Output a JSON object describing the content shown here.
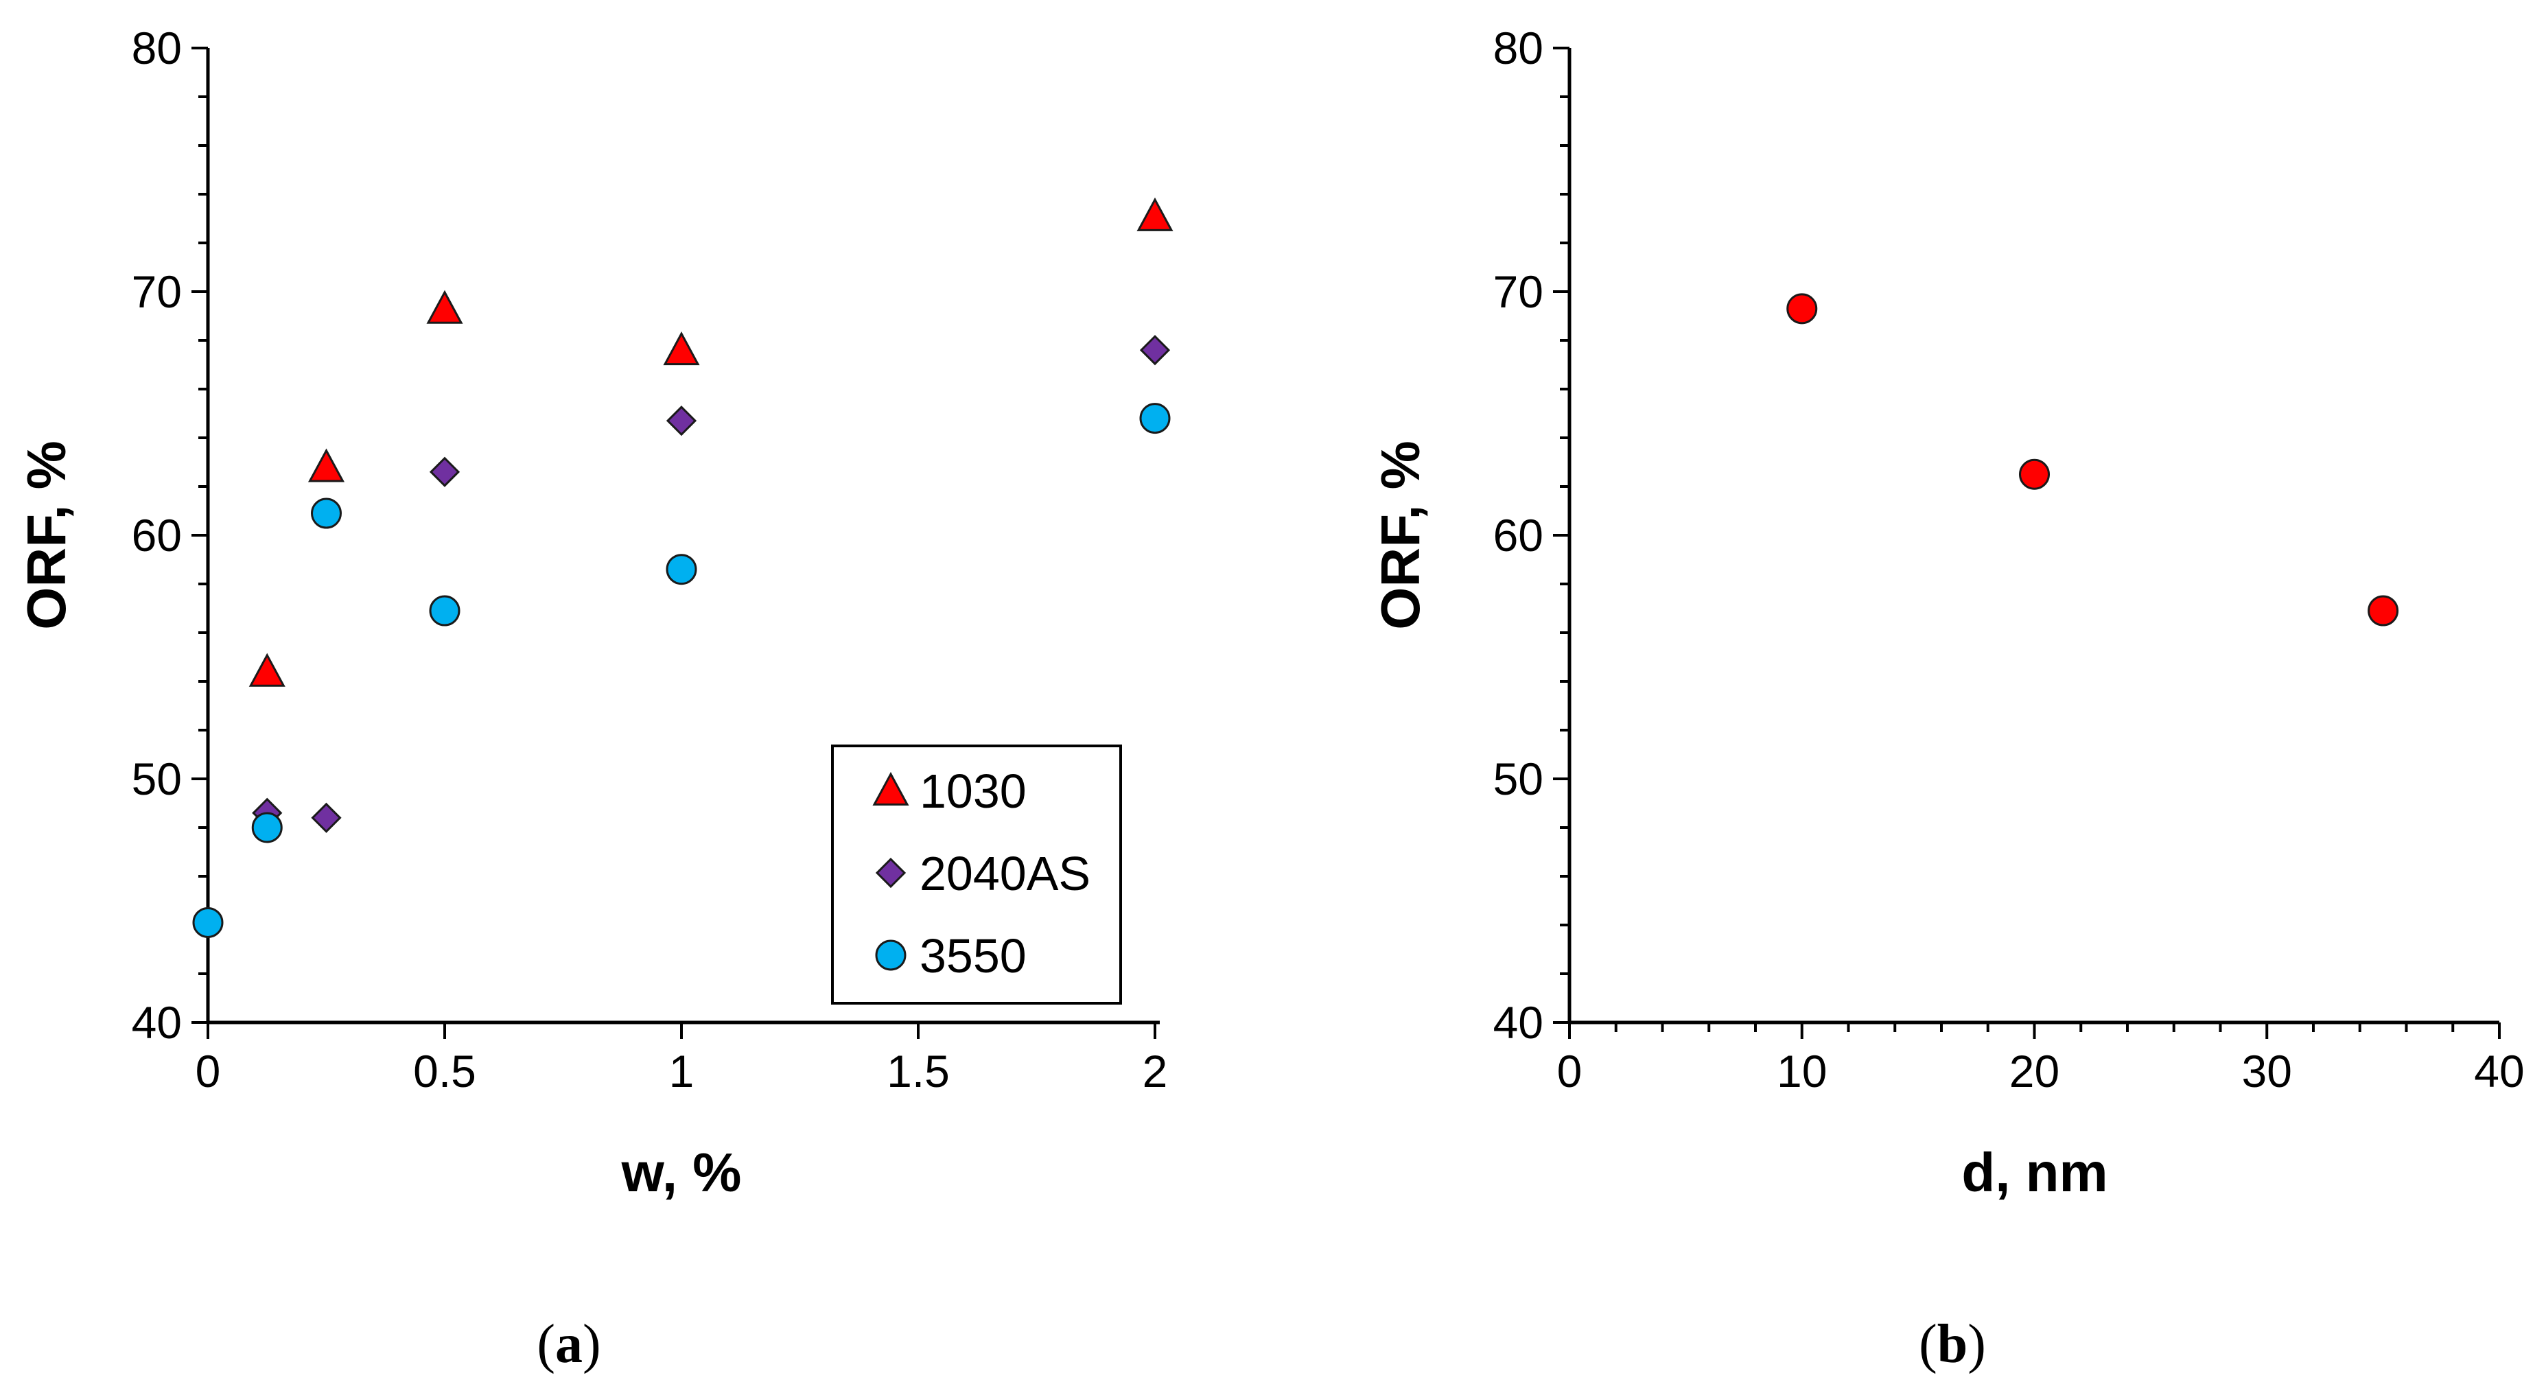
{
  "chart_data": [
    {
      "type": "scatter",
      "panel": "a",
      "xlabel": "w, %",
      "ylabel": "ORF, %",
      "ylim": [
        40,
        80
      ],
      "yticks": [
        40,
        50,
        60,
        70,
        80
      ],
      "categories": [
        "0",
        "0.5",
        "1",
        "1.5",
        "2"
      ],
      "legend_position": "bottom-right",
      "series": [
        {
          "name": "1030",
          "marker": "triangle",
          "color": "#ff0000",
          "x": [
            0.125,
            0.25,
            0.5,
            1,
            2
          ],
          "y": [
            54.4,
            62.8,
            69.3,
            67.6,
            73.1
          ]
        },
        {
          "name": "2040AS",
          "marker": "diamond",
          "color": "#7030a0",
          "x": [
            0.125,
            0.25,
            0.5,
            1,
            2
          ],
          "y": [
            48.6,
            48.4,
            62.6,
            64.7,
            67.6
          ]
        },
        {
          "name": "3550",
          "marker": "circle",
          "color": "#00b0f0",
          "x": [
            0,
            0.125,
            0.25,
            0.5,
            1,
            2
          ],
          "y": [
            44.1,
            48.0,
            60.9,
            56.9,
            58.6,
            64.8
          ]
        }
      ]
    },
    {
      "type": "scatter",
      "panel": "b",
      "xlabel": "d, nm",
      "ylabel": "ORF, %",
      "xlim": [
        0,
        40
      ],
      "ylim": [
        40,
        80
      ],
      "xticks": [
        0,
        10,
        20,
        30,
        40
      ],
      "yticks": [
        40,
        50,
        60,
        70,
        80
      ],
      "series": [
        {
          "name": "ORF",
          "marker": "circle",
          "color": "#ff0000",
          "x": [
            10,
            20,
            35
          ],
          "y": [
            69.3,
            62.5,
            56.9
          ]
        }
      ]
    }
  ],
  "captions": {
    "a": {
      "open": "(",
      "letter": "a",
      "close": ")"
    },
    "b": {
      "open": "(",
      "letter": "b",
      "close": ")"
    }
  }
}
